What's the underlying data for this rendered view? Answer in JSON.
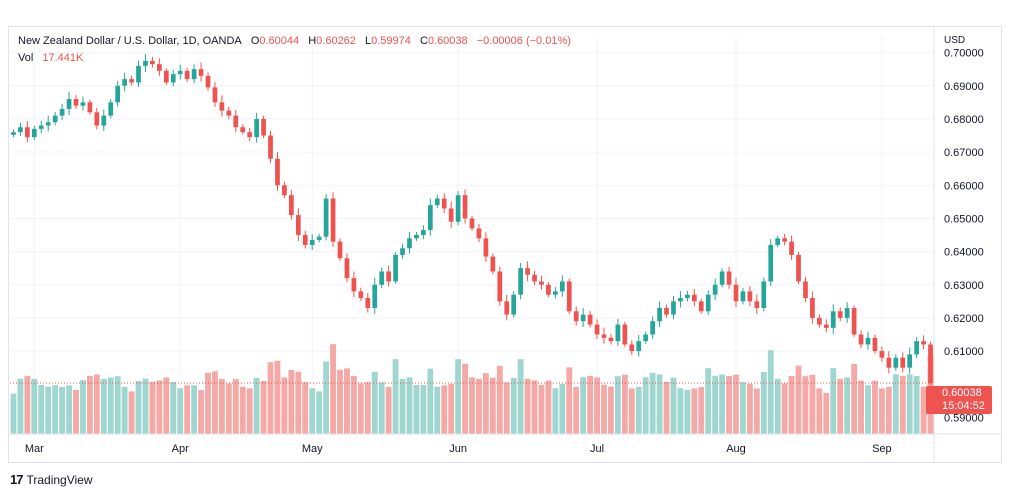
{
  "legend": {
    "symbol": "New Zealand Dollar / U.S. Dollar, 1D, OANDA",
    "o_label": "O",
    "o_value": "0.60044",
    "h_label": "H",
    "h_value": "0.60262",
    "l_label": "L",
    "l_value": "0.59974",
    "c_label": "C",
    "c_value": "0.60038",
    "change": "−0.00006 (−0.01%)",
    "vol_label": "Vol",
    "vol_value": "17.441K"
  },
  "price_tag": {
    "price": "0.60038",
    "countdown": "15:04:52"
  },
  "currency": "USD",
  "branding": {
    "name": "TradingView"
  },
  "colors": {
    "up": "#26a69a",
    "down": "#ef5350",
    "vol_up": "#9fd6cf",
    "vol_down": "#f4a9a7",
    "grid": "#f0f3fa"
  },
  "chart_data": {
    "type": "candlestick",
    "title": "New Zealand Dollar / U.S. Dollar, 1D, OANDA",
    "currency": "USD",
    "ylim": [
      0.585,
      0.705
    ],
    "y_ticks": [
      "0.70000",
      "0.69000",
      "0.68000",
      "0.67000",
      "0.66000",
      "0.65000",
      "0.64000",
      "0.63000",
      "0.62000",
      "0.61000",
      "0.59000"
    ],
    "x_ticks": [
      "Mar",
      "Apr",
      "May",
      "Jun",
      "Jul",
      "Aug",
      "Sep"
    ],
    "x_tick_index": [
      3,
      24,
      43,
      64,
      84,
      104,
      125
    ],
    "last_price": 0.60038,
    "closes": [
      0.676,
      0.6775,
      0.6745,
      0.677,
      0.678,
      0.679,
      0.681,
      0.683,
      0.686,
      0.684,
      0.685,
      0.682,
      0.678,
      0.681,
      0.685,
      0.69,
      0.692,
      0.691,
      0.696,
      0.6975,
      0.6965,
      0.6945,
      0.691,
      0.6935,
      0.6945,
      0.692,
      0.695,
      0.693,
      0.6895,
      0.685,
      0.6825,
      0.681,
      0.6775,
      0.676,
      0.6745,
      0.68,
      0.675,
      0.668,
      0.66,
      0.657,
      0.651,
      0.645,
      0.642,
      0.6435,
      0.6445,
      0.656,
      0.643,
      0.638,
      0.632,
      0.628,
      0.626,
      0.623,
      0.63,
      0.634,
      0.631,
      0.639,
      0.641,
      0.644,
      0.645,
      0.6465,
      0.654,
      0.656,
      0.653,
      0.649,
      0.657,
      0.65,
      0.647,
      0.644,
      0.6385,
      0.634,
      0.625,
      0.621,
      0.627,
      0.635,
      0.633,
      0.631,
      0.63,
      0.627,
      0.628,
      0.631,
      0.622,
      0.619,
      0.621,
      0.618,
      0.615,
      0.614,
      0.613,
      0.618,
      0.612,
      0.61,
      0.613,
      0.615,
      0.619,
      0.623,
      0.621,
      0.625,
      0.626,
      0.627,
      0.625,
      0.622,
      0.627,
      0.63,
      0.634,
      0.63,
      0.625,
      0.628,
      0.625,
      0.623,
      0.631,
      0.642,
      0.644,
      0.643,
      0.639,
      0.631,
      0.626,
      0.62,
      0.618,
      0.617,
      0.622,
      0.62,
      0.623,
      0.615,
      0.612,
      0.614,
      0.61,
      0.608,
      0.605,
      0.608,
      0.605,
      0.609,
      0.613,
      0.612,
      0.60038
    ]
  }
}
